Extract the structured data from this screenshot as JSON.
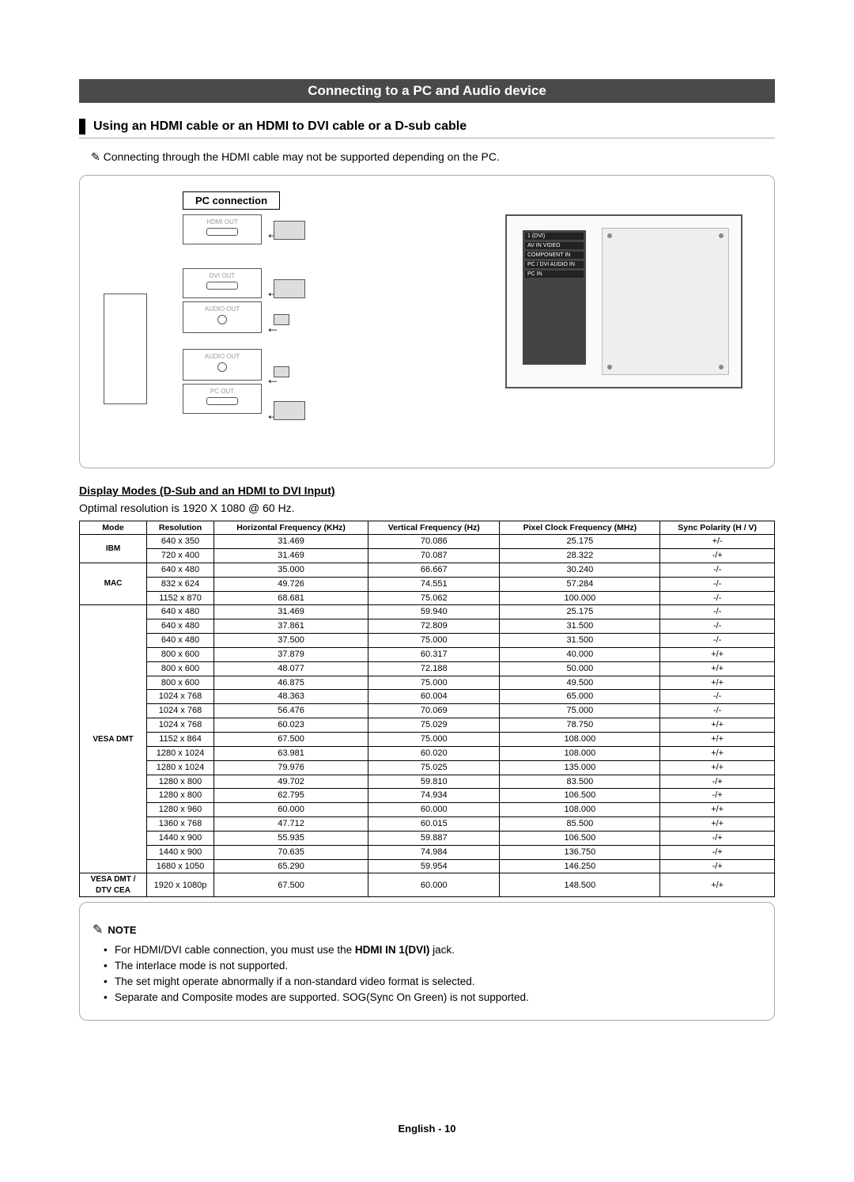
{
  "title": "Connecting to a PC and Audio device",
  "subheading": "Using an HDMI cable or an HDMI to DVI cable or a D-sub cable",
  "lead_note": "Connecting through the HDMI cable may not be supported depending on the PC.",
  "pc_connection_label": "PC connection",
  "ports": {
    "hdmi": "HDMI OUT",
    "dvi": "DVI OUT",
    "audio1": "AUDIO OUT",
    "audio2": "AUDIO OUT",
    "pc": "PC OUT"
  },
  "tv_panel_labels": {
    "l1": "1 (DVI)",
    "l2": "AV IN    VIDEO",
    "l3": "COMPONENT IN",
    "l4": "PC / DVI AUDIO IN",
    "l5": "PC IN"
  },
  "table_heading": "Display Modes (D-Sub and an HDMI to DVI Input)",
  "optimal": "Optimal resolution is 1920 X 1080 @ 60 Hz.",
  "columns": [
    "Mode",
    "Resolution",
    "Horizontal Frequency (KHz)",
    "Vertical Frequency (Hz)",
    "Pixel Clock Frequency (MHz)",
    "Sync Polarity (H / V)"
  ],
  "groups": [
    {
      "mode": "IBM",
      "rows": [
        [
          "640 x 350",
          "31.469",
          "70.086",
          "25.175",
          "+/-"
        ],
        [
          "720 x 400",
          "31.469",
          "70.087",
          "28.322",
          "-/+"
        ]
      ]
    },
    {
      "mode": "MAC",
      "rows": [
        [
          "640 x 480",
          "35.000",
          "66.667",
          "30.240",
          "-/-"
        ],
        [
          "832 x 624",
          "49.726",
          "74.551",
          "57.284",
          "-/-"
        ],
        [
          "1152 x 870",
          "68.681",
          "75.062",
          "100.000",
          "-/-"
        ]
      ]
    },
    {
      "mode": "VESA DMT",
      "rows": [
        [
          "640 x 480",
          "31.469",
          "59.940",
          "25.175",
          "-/-"
        ],
        [
          "640 x 480",
          "37.861",
          "72.809",
          "31.500",
          "-/-"
        ],
        [
          "640 x 480",
          "37.500",
          "75.000",
          "31.500",
          "-/-"
        ],
        [
          "800 x 600",
          "37.879",
          "60.317",
          "40.000",
          "+/+"
        ],
        [
          "800 x 600",
          "48.077",
          "72.188",
          "50.000",
          "+/+"
        ],
        [
          "800 x 600",
          "46.875",
          "75.000",
          "49.500",
          "+/+"
        ],
        [
          "1024 x 768",
          "48.363",
          "60.004",
          "65.000",
          "-/-"
        ],
        [
          "1024 x 768",
          "56.476",
          "70.069",
          "75.000",
          "-/-"
        ],
        [
          "1024 x 768",
          "60.023",
          "75.029",
          "78.750",
          "+/+"
        ],
        [
          "1152 x 864",
          "67.500",
          "75.000",
          "108.000",
          "+/+"
        ],
        [
          "1280 x 1024",
          "63.981",
          "60.020",
          "108.000",
          "+/+"
        ],
        [
          "1280 x 1024",
          "79.976",
          "75.025",
          "135.000",
          "+/+"
        ],
        [
          "1280 x 800",
          "49.702",
          "59.810",
          "83.500",
          "-/+"
        ],
        [
          "1280 x 800",
          "62.795",
          "74.934",
          "106.500",
          "-/+"
        ],
        [
          "1280 x 960",
          "60.000",
          "60.000",
          "108.000",
          "+/+"
        ],
        [
          "1360 x 768",
          "47.712",
          "60.015",
          "85.500",
          "+/+"
        ],
        [
          "1440 x 900",
          "55.935",
          "59.887",
          "106.500",
          "-/+"
        ],
        [
          "1440 x 900",
          "70.635",
          "74.984",
          "136.750",
          "-/+"
        ],
        [
          "1680 x 1050",
          "65.290",
          "59.954",
          "146.250",
          "-/+"
        ]
      ]
    },
    {
      "mode": "VESA DMT / DTV CEA",
      "rows": [
        [
          "1920 x 1080p",
          "67.500",
          "60.000",
          "148.500",
          "+/+"
        ]
      ]
    }
  ],
  "note_label": "NOTE",
  "notes": [
    {
      "pre": "For HDMI/DVI cable connection, you must use the ",
      "bold": "HDMI IN 1(DVI)",
      "post": " jack."
    },
    {
      "pre": "The interlace mode is not supported.",
      "bold": "",
      "post": ""
    },
    {
      "pre": "The set might operate abnormally if a non-standard video format is selected.",
      "bold": "",
      "post": ""
    },
    {
      "pre": "Separate and Composite modes are supported. SOG(Sync On Green) is not supported.",
      "bold": "",
      "post": ""
    }
  ],
  "footer": "English - 10"
}
